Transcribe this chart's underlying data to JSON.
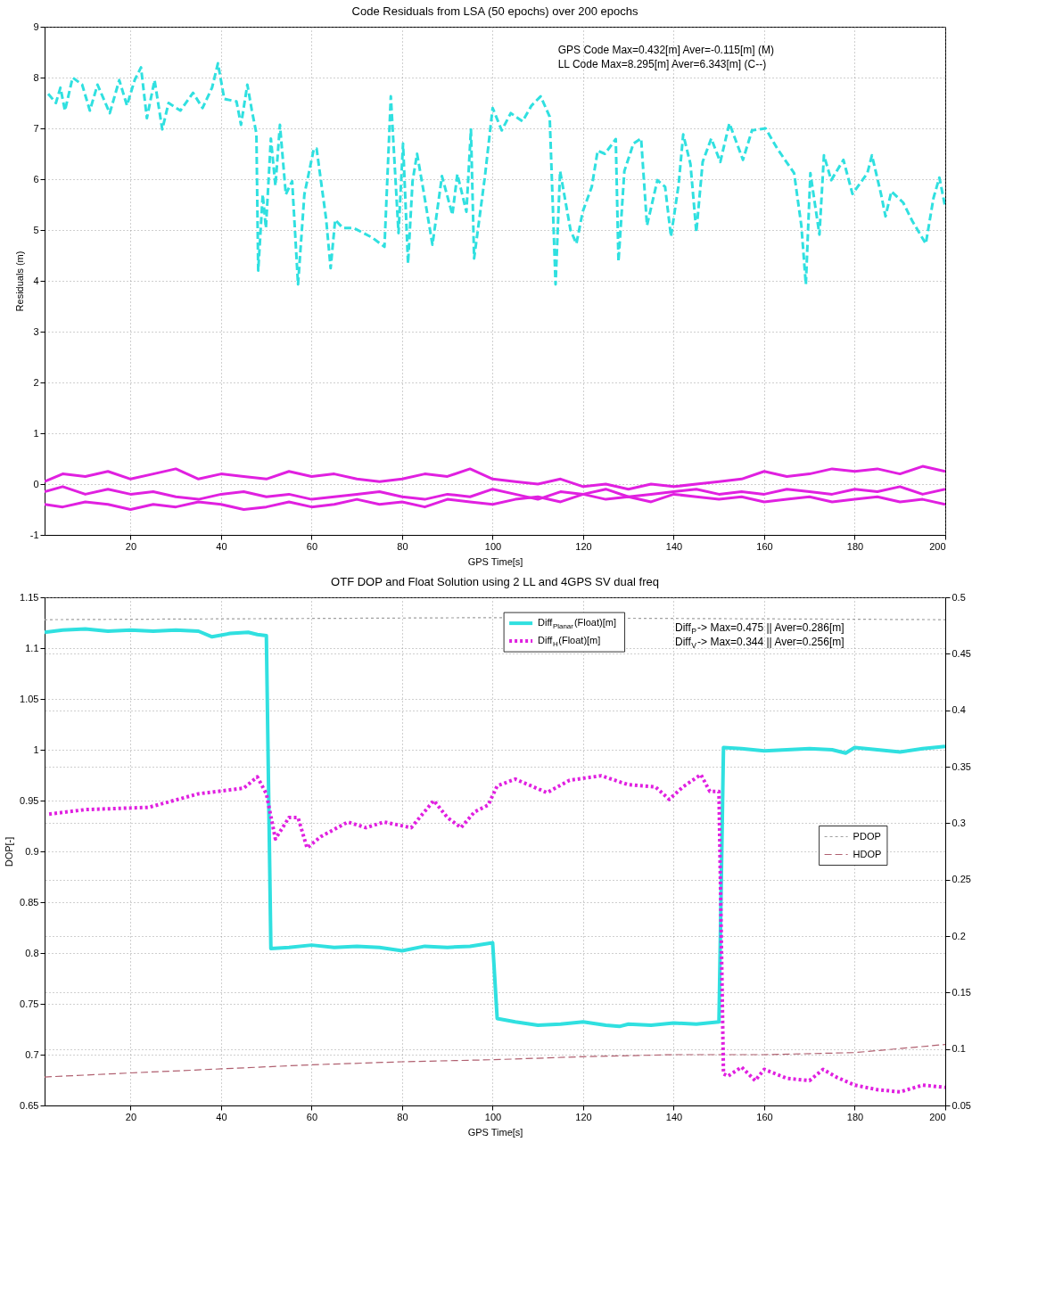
{
  "chart_data": [
    {
      "type": "line",
      "title": "Code Residuals from LSA (50 epochs) over 200 epochs",
      "xlabel": "GPS Time[s]",
      "ylabel": "Residuals (m)",
      "annotations": [
        "GPS Code Max=0.432[m] Aver=-0.115[m] (M)",
        "LL Code Max=8.295[m]  Aver=6.343[m] (C--)"
      ],
      "xlim": [
        1,
        200
      ],
      "xticks": [
        20,
        40,
        60,
        80,
        100,
        120,
        140,
        160,
        180,
        200
      ],
      "ylim": [
        -1,
        9
      ],
      "yticks": [
        -1,
        0,
        1,
        2,
        3,
        4,
        5,
        6,
        7,
        8,
        9
      ],
      "grid": true,
      "series": [
        {
          "color": "#30e0e0",
          "line_style": "dashed",
          "x": [
            1.8,
            3.5,
            4.5,
            5.5,
            7.2,
            9.3,
            11,
            12.7,
            15.4,
            17.5,
            19.2,
            20.9,
            22.3,
            23.6,
            25.3,
            27,
            28.4,
            31,
            33.8,
            35.9,
            38,
            39.3,
            40.7,
            43.4,
            44.4,
            45.8,
            46.8,
            47.8,
            48.2,
            49.2,
            49.9,
            51,
            52,
            53,
            54.3,
            55.7,
            57,
            58.4,
            60.5,
            61.1,
            63.2,
            64.2,
            65.2,
            66.9,
            69.3,
            73.4,
            76.1,
            77.5,
            79.2,
            80.2,
            81.3,
            82.3,
            83.3,
            84.7,
            86.7,
            88.8,
            91.1,
            92.2,
            94.2,
            95.2,
            95.9,
            98.3,
            100,
            102,
            104,
            106.6,
            108.6,
            110.6,
            112.6,
            113.9,
            114.9,
            117.2,
            118.5,
            119.9,
            121.9,
            123.2,
            124.8,
            127.2,
            127.8,
            129.1,
            131.1,
            132.8,
            134.1,
            136.4,
            138.1,
            139.4,
            141.1,
            142.1,
            143.7,
            145,
            146.4,
            148.3,
            150.3,
            152.3,
            155.3,
            157.3,
            160.3,
            162.9,
            166.6,
            168.2,
            169.2,
            170.2,
            172.2,
            173.2,
            174.8,
            177.5,
            179.5,
            182.8,
            183.8,
            185.8,
            186.8,
            188.1,
            190.7,
            192.7,
            195.7,
            197.4,
            198.7,
            200
          ],
          "values": [
            7.68,
            7.5,
            7.8,
            7.35,
            8.0,
            7.86,
            7.35,
            7.86,
            7.3,
            7.95,
            7.45,
            7.95,
            8.2,
            7.2,
            7.95,
            6.98,
            7.5,
            7.35,
            7.7,
            7.4,
            7.8,
            8.28,
            7.58,
            7.53,
            7.07,
            7.86,
            7.35,
            6.9,
            4.2,
            5.7,
            5.04,
            6.8,
            5.87,
            7.07,
            5.7,
            5.96,
            3.93,
            5.7,
            6.6,
            6.6,
            5.22,
            4.25,
            5.2,
            5.04,
            5.04,
            4.85,
            4.67,
            7.63,
            4.94,
            6.7,
            4.34,
            5.96,
            6.5,
            5.78,
            4.71,
            6.06,
            5.3,
            6.1,
            5.36,
            6.98,
            4.44,
            6.06,
            7.4,
            6.96,
            7.3,
            7.14,
            7.45,
            7.63,
            7.23,
            3.93,
            6.16,
            5.0,
            4.73,
            5.36,
            5.85,
            6.56,
            6.5,
            6.79,
            4.38,
            6.16,
            6.7,
            6.8,
            5.09,
            5.98,
            5.85,
            4.87,
            5.9,
            6.88,
            6.3,
            4.96,
            6.34,
            6.8,
            6.34,
            7.1,
            6.38,
            6.96,
            7.0,
            6.6,
            6.12,
            5.09,
            3.93,
            6.12,
            4.91,
            6.47,
            5.98,
            6.38,
            5.71,
            6.12,
            6.47,
            5.71,
            5.27,
            5.76,
            5.54,
            5.18,
            4.73,
            5.63,
            6.03,
            5.45
          ]
        },
        {
          "color": "#e020e0",
          "line_style": "solid",
          "x": [
            1,
            5,
            10,
            15,
            20,
            25,
            30,
            35,
            40,
            45,
            50,
            55,
            60,
            65,
            70,
            75,
            80,
            85,
            90,
            95,
            100,
            105,
            110,
            115,
            120,
            125,
            130,
            135,
            140,
            145,
            150,
            155,
            160,
            165,
            170,
            175,
            180,
            185,
            190,
            195,
            200
          ],
          "values": [
            0.05,
            0.2,
            0.15,
            0.25,
            0.1,
            0.2,
            0.3,
            0.1,
            0.2,
            0.15,
            0.1,
            0.25,
            0.15,
            0.2,
            0.1,
            0.05,
            0.1,
            0.2,
            0.15,
            0.3,
            0.1,
            0.05,
            0.0,
            0.1,
            -0.05,
            0.0,
            -0.1,
            0.0,
            -0.05,
            0.0,
            0.05,
            0.1,
            0.25,
            0.15,
            0.2,
            0.3,
            0.25,
            0.3,
            0.2,
            0.35,
            0.25
          ]
        },
        {
          "color": "#e020e0",
          "line_style": "solid",
          "x": [
            1,
            5,
            10,
            15,
            20,
            25,
            30,
            35,
            40,
            45,
            50,
            55,
            60,
            65,
            70,
            75,
            80,
            85,
            90,
            95,
            100,
            105,
            110,
            115,
            120,
            125,
            130,
            135,
            140,
            145,
            150,
            155,
            160,
            165,
            170,
            175,
            180,
            185,
            190,
            195,
            200
          ],
          "values": [
            -0.15,
            -0.05,
            -0.2,
            -0.1,
            -0.2,
            -0.15,
            -0.25,
            -0.3,
            -0.2,
            -0.15,
            -0.25,
            -0.2,
            -0.3,
            -0.25,
            -0.2,
            -0.15,
            -0.25,
            -0.3,
            -0.2,
            -0.25,
            -0.1,
            -0.2,
            -0.3,
            -0.15,
            -0.2,
            -0.1,
            -0.25,
            -0.2,
            -0.15,
            -0.1,
            -0.2,
            -0.15,
            -0.2,
            -0.1,
            -0.15,
            -0.2,
            -0.1,
            -0.15,
            -0.05,
            -0.2,
            -0.1
          ]
        },
        {
          "color": "#e020e0",
          "line_style": "solid",
          "x": [
            1,
            5,
            10,
            15,
            20,
            25,
            30,
            35,
            40,
            45,
            50,
            55,
            60,
            65,
            70,
            75,
            80,
            85,
            90,
            95,
            100,
            105,
            110,
            115,
            120,
            125,
            130,
            135,
            140,
            145,
            150,
            155,
            160,
            165,
            170,
            175,
            180,
            185,
            190,
            195,
            200
          ],
          "values": [
            -0.4,
            -0.45,
            -0.35,
            -0.4,
            -0.5,
            -0.4,
            -0.45,
            -0.35,
            -0.4,
            -0.5,
            -0.45,
            -0.35,
            -0.45,
            -0.4,
            -0.3,
            -0.4,
            -0.35,
            -0.45,
            -0.3,
            -0.35,
            -0.4,
            -0.3,
            -0.25,
            -0.35,
            -0.2,
            -0.3,
            -0.25,
            -0.35,
            -0.2,
            -0.25,
            -0.3,
            -0.25,
            -0.35,
            -0.3,
            -0.25,
            -0.35,
            -0.3,
            -0.25,
            -0.35,
            -0.3,
            -0.4
          ]
        }
      ]
    },
    {
      "type": "line",
      "title": "OTF DOP and Float Solution using 2 LL and 4GPS SV dual freq",
      "xlabel": "GPS Time[s]",
      "ylabel": "DOP[-]",
      "annotations": [
        "Diff$_{P}$-> Max=0.475 || Aver=0.286[m]",
        "Diff$_{V}$-> Max=0.344 || Aver=0.256[m]"
      ],
      "xlim": [
        1,
        200
      ],
      "xticks": [
        20,
        40,
        60,
        80,
        100,
        120,
        140,
        160,
        180,
        200
      ],
      "ylim": [
        0.65,
        1.15
      ],
      "yticks": [
        0.65,
        0.7,
        0.75,
        0.8,
        0.85,
        0.9,
        0.95,
        1,
        1.05,
        1.1,
        1.15
      ],
      "y2lim": [
        0.05,
        0.5
      ],
      "y2ticks": [
        0.05,
        0.1,
        0.15,
        0.2,
        0.25,
        0.3,
        0.35,
        0.4,
        0.45,
        0.5
      ],
      "grid": true,
      "legend": "top",
      "series": [
        {
          "name": "Diff$_{Planar}$(Float)[m]",
          "color": "#30e0e0",
          "line_style": "solid",
          "axis": "y2",
          "x": [
            1,
            5,
            10,
            15,
            20,
            25,
            30,
            35,
            38,
            42,
            46,
            48,
            50,
            51,
            55,
            60,
            65,
            70,
            75,
            80,
            85,
            90,
            95,
            100,
            101,
            105,
            110,
            115,
            120,
            125,
            128,
            130,
            135,
            140,
            145,
            150,
            151,
            155,
            160,
            165,
            170,
            175,
            178,
            180,
            185,
            190,
            195,
            200
          ],
          "values": [
            0.469,
            0.471,
            0.472,
            0.47,
            0.471,
            0.47,
            0.471,
            0.47,
            0.465,
            0.468,
            0.469,
            0.467,
            0.466,
            0.189,
            0.19,
            0.192,
            0.19,
            0.191,
            0.19,
            0.187,
            0.191,
            0.19,
            0.191,
            0.194,
            0.127,
            0.124,
            0.121,
            0.122,
            0.124,
            0.121,
            0.12,
            0.122,
            0.121,
            0.123,
            0.122,
            0.124,
            0.367,
            0.366,
            0.364,
            0.365,
            0.366,
            0.365,
            0.362,
            0.367,
            0.365,
            0.363,
            0.366,
            0.368
          ]
        },
        {
          "name": "Diff$_{H}$(Float)[m]",
          "color": "#e020e0",
          "line_style": "dotted",
          "axis": "y2",
          "x": [
            2,
            10,
            24,
            35,
            45,
            48,
            50,
            52,
            55,
            57,
            59,
            62,
            68,
            72,
            76,
            82,
            87,
            90,
            93,
            96,
            99,
            101,
            105,
            112,
            117,
            124,
            130,
            136,
            139,
            142,
            146,
            148,
            150,
            151,
            152,
            155,
            158,
            160,
            165,
            170,
            173,
            176,
            180,
            185,
            190,
            195,
            200
          ],
          "values": [
            0.308,
            0.312,
            0.314,
            0.326,
            0.331,
            0.341,
            0.326,
            0.286,
            0.305,
            0.305,
            0.278,
            0.288,
            0.301,
            0.296,
            0.301,
            0.296,
            0.32,
            0.305,
            0.296,
            0.31,
            0.316,
            0.333,
            0.339,
            0.327,
            0.338,
            0.342,
            0.334,
            0.332,
            0.321,
            0.332,
            0.343,
            0.328,
            0.328,
            0.078,
            0.076,
            0.084,
            0.072,
            0.082,
            0.074,
            0.072,
            0.082,
            0.075,
            0.068,
            0.064,
            0.062,
            0.068,
            0.066
          ]
        },
        {
          "name": "PDOP",
          "color": "#a0a0a0",
          "line_style": "dotted",
          "x": [
            1,
            50,
            100,
            150,
            200
          ],
          "values": [
            1.128,
            1.129,
            1.13,
            1.129,
            1.128
          ]
        },
        {
          "name": "HDOP",
          "color": "#b06070",
          "line_style": "dashed",
          "x": [
            1,
            20,
            40,
            60,
            80,
            100,
            120,
            140,
            160,
            180,
            200
          ],
          "values": [
            0.678,
            0.682,
            0.686,
            0.69,
            0.693,
            0.695,
            0.698,
            0.7,
            0.7,
            0.702,
            0.71
          ]
        }
      ]
    }
  ]
}
